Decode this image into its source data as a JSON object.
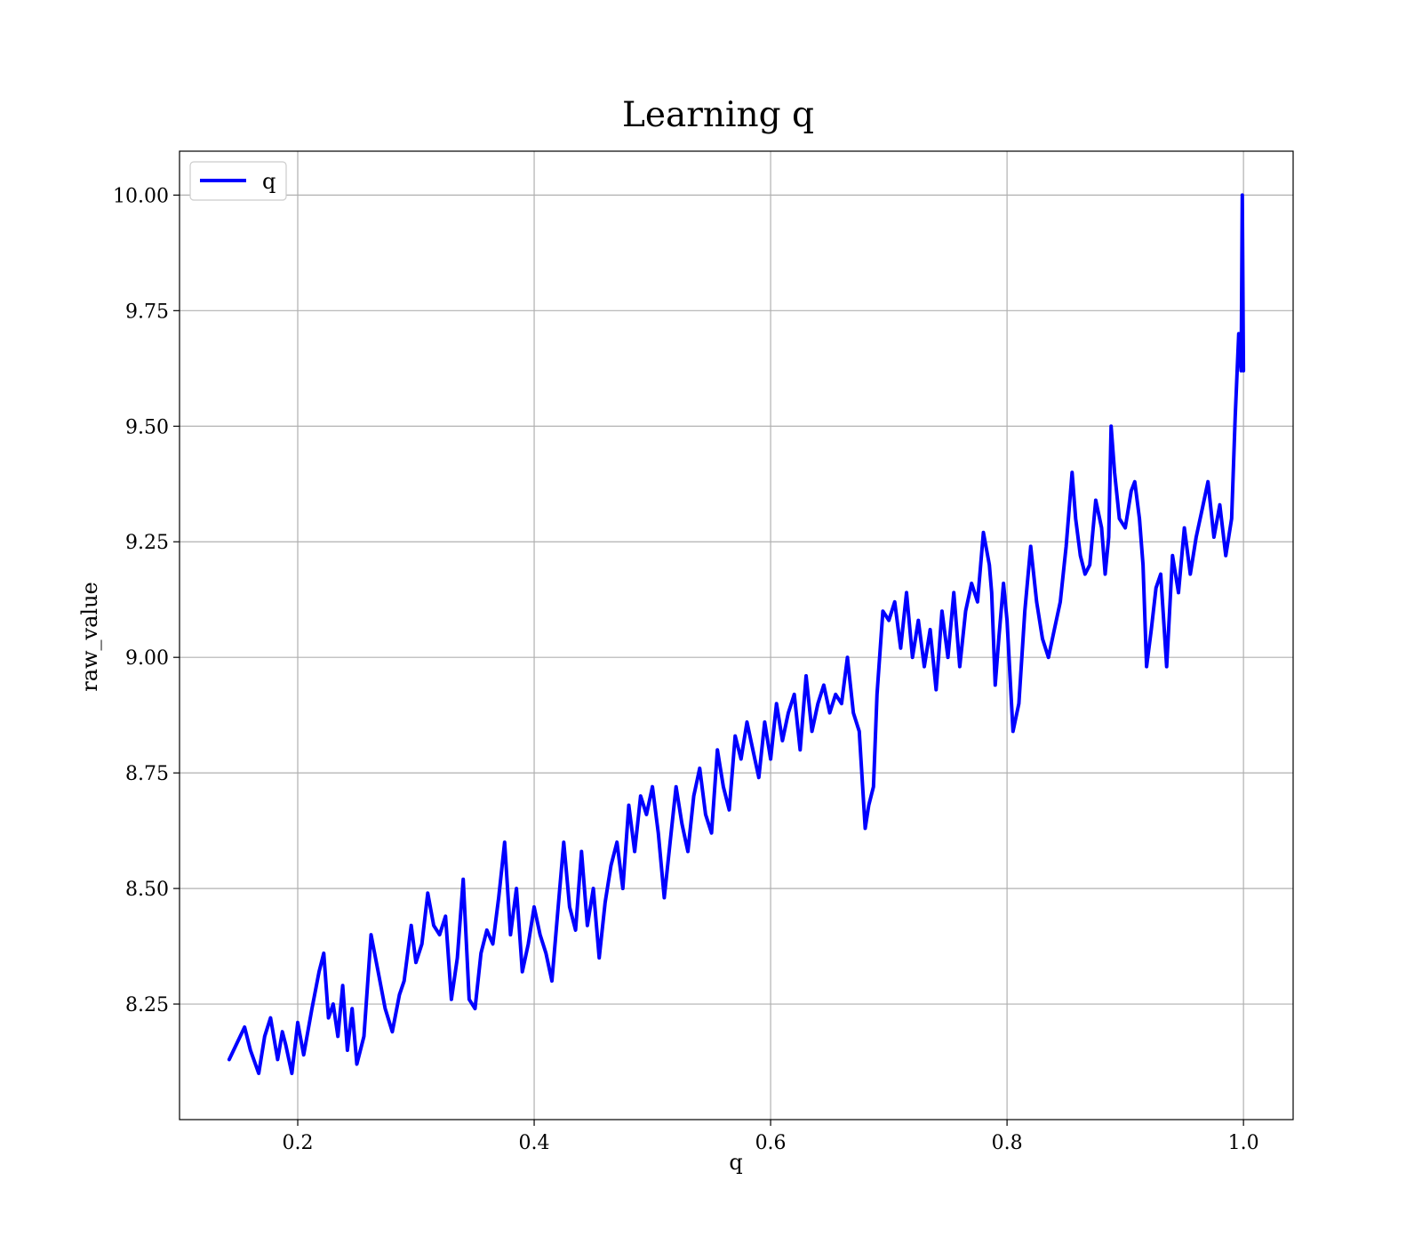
{
  "chart_data": {
    "type": "line",
    "title": "Learning q",
    "xlabel": "q",
    "ylabel": "raw_value",
    "xlim": [
      0.1,
      1.042
    ],
    "ylim": [
      8.0,
      10.095
    ],
    "grid": true,
    "legend_position": "upper-left",
    "x_ticks": [
      0.2,
      0.4,
      0.6,
      0.8,
      1.0
    ],
    "x_tick_labels": [
      "0.2",
      "0.4",
      "0.6",
      "0.8",
      "1.0"
    ],
    "y_ticks": [
      8.25,
      8.5,
      8.75,
      9.0,
      9.25,
      9.5,
      9.75,
      10.0
    ],
    "y_tick_labels": [
      "8.25",
      "8.50",
      "8.75",
      "9.00",
      "9.25",
      "9.50",
      "9.75",
      "10.00"
    ],
    "series": [
      {
        "name": "q",
        "color": "#0000ff",
        "x": [
          0.142,
          0.155,
          0.16,
          0.167,
          0.172,
          0.177,
          0.183,
          0.187,
          0.19,
          0.195,
          0.2,
          0.205,
          0.212,
          0.218,
          0.222,
          0.226,
          0.23,
          0.234,
          0.238,
          0.242,
          0.246,
          0.25,
          0.256,
          0.262,
          0.268,
          0.274,
          0.28,
          0.286,
          0.29,
          0.296,
          0.3,
          0.305,
          0.31,
          0.315,
          0.32,
          0.325,
          0.33,
          0.335,
          0.34,
          0.345,
          0.35,
          0.355,
          0.36,
          0.365,
          0.37,
          0.375,
          0.38,
          0.385,
          0.39,
          0.395,
          0.4,
          0.405,
          0.41,
          0.415,
          0.42,
          0.425,
          0.43,
          0.435,
          0.44,
          0.445,
          0.45,
          0.455,
          0.46,
          0.465,
          0.47,
          0.475,
          0.48,
          0.485,
          0.49,
          0.495,
          0.5,
          0.505,
          0.51,
          0.515,
          0.52,
          0.525,
          0.53,
          0.535,
          0.54,
          0.545,
          0.55,
          0.555,
          0.56,
          0.565,
          0.57,
          0.575,
          0.58,
          0.585,
          0.59,
          0.595,
          0.6,
          0.605,
          0.61,
          0.615,
          0.62,
          0.625,
          0.63,
          0.635,
          0.64,
          0.645,
          0.65,
          0.655,
          0.66,
          0.665,
          0.67,
          0.675,
          0.68,
          0.683,
          0.687,
          0.69,
          0.695,
          0.7,
          0.705,
          0.71,
          0.715,
          0.72,
          0.725,
          0.73,
          0.735,
          0.74,
          0.745,
          0.75,
          0.755,
          0.76,
          0.765,
          0.77,
          0.775,
          0.78,
          0.785,
          0.787,
          0.79,
          0.793,
          0.797,
          0.8,
          0.805,
          0.81,
          0.815,
          0.82,
          0.825,
          0.83,
          0.835,
          0.84,
          0.845,
          0.85,
          0.855,
          0.858,
          0.862,
          0.866,
          0.87,
          0.875,
          0.88,
          0.883,
          0.886,
          0.888,
          0.891,
          0.895,
          0.9,
          0.905,
          0.908,
          0.912,
          0.915,
          0.918,
          0.922,
          0.926,
          0.93,
          0.935,
          0.94,
          0.945,
          0.95,
          0.955,
          0.96,
          0.965,
          0.97,
          0.975,
          0.98,
          0.985,
          0.99,
          0.993,
          0.996,
          0.998,
          0.999,
          1.0
        ],
        "y": [
          8.13,
          8.2,
          8.15,
          8.1,
          8.18,
          8.22,
          8.13,
          8.19,
          8.16,
          8.1,
          8.21,
          8.14,
          8.24,
          8.32,
          8.36,
          8.22,
          8.25,
          8.18,
          8.29,
          8.15,
          8.24,
          8.12,
          8.18,
          8.4,
          8.32,
          8.24,
          8.19,
          8.27,
          8.3,
          8.42,
          8.34,
          8.38,
          8.49,
          8.42,
          8.4,
          8.44,
          8.26,
          8.35,
          8.52,
          8.26,
          8.24,
          8.36,
          8.41,
          8.38,
          8.48,
          8.6,
          8.4,
          8.5,
          8.32,
          8.38,
          8.46,
          8.4,
          8.36,
          8.3,
          8.45,
          8.6,
          8.46,
          8.41,
          8.58,
          8.42,
          8.5,
          8.35,
          8.47,
          8.55,
          8.6,
          8.5,
          8.68,
          8.58,
          8.7,
          8.66,
          8.72,
          8.62,
          8.48,
          8.6,
          8.72,
          8.64,
          8.58,
          8.7,
          8.76,
          8.66,
          8.62,
          8.8,
          8.72,
          8.67,
          8.83,
          8.78,
          8.86,
          8.8,
          8.74,
          8.86,
          8.78,
          8.9,
          8.82,
          8.88,
          8.92,
          8.8,
          8.96,
          8.84,
          8.9,
          8.94,
          8.88,
          8.92,
          8.9,
          9.0,
          8.88,
          8.84,
          8.63,
          8.68,
          8.72,
          8.92,
          9.1,
          9.08,
          9.12,
          9.02,
          9.14,
          9.0,
          9.08,
          8.98,
          9.06,
          8.93,
          9.1,
          9.0,
          9.14,
          8.98,
          9.1,
          9.16,
          9.12,
          9.27,
          9.2,
          9.14,
          8.94,
          9.04,
          9.16,
          9.08,
          8.84,
          8.9,
          9.1,
          9.24,
          9.12,
          9.04,
          9.0,
          9.06,
          9.12,
          9.24,
          9.4,
          9.3,
          9.22,
          9.18,
          9.2,
          9.34,
          9.28,
          9.18,
          9.26,
          9.5,
          9.4,
          9.3,
          9.28,
          9.36,
          9.38,
          9.3,
          9.2,
          8.98,
          9.06,
          9.15,
          9.18,
          8.98,
          9.22,
          9.14,
          9.28,
          9.18,
          9.26,
          9.32,
          9.38,
          9.26,
          9.33,
          9.22,
          9.3,
          9.52,
          9.7,
          9.62,
          10.0,
          9.62
        ]
      }
    ]
  }
}
